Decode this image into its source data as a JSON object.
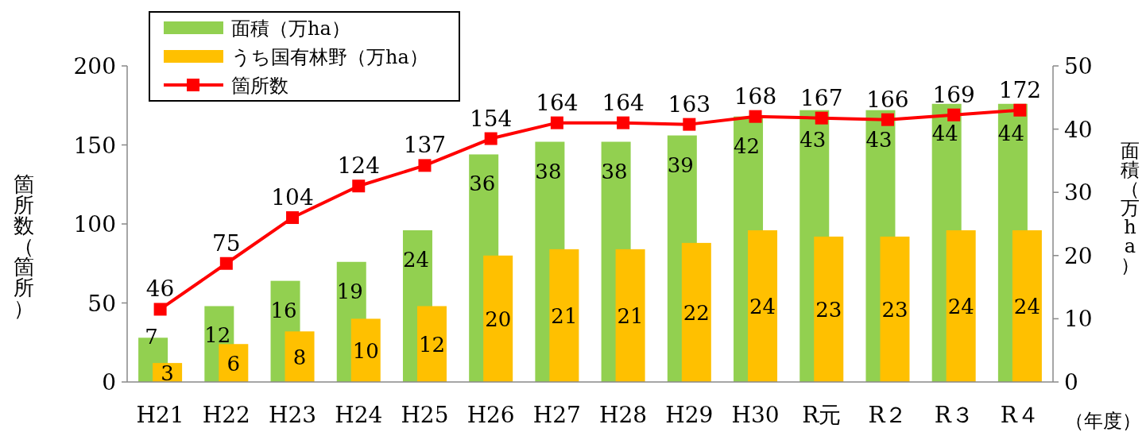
{
  "chart_data": {
    "type": "bar",
    "categories": [
      "H21",
      "H22",
      "H23",
      "H24",
      "H25",
      "H26",
      "H27",
      "H28",
      "H29",
      "H30",
      "R元",
      "R２",
      "R３",
      "R４"
    ],
    "series": [
      {
        "name": "面積（万ha）",
        "axis": "y2",
        "color": "#92d050",
        "values": [
          7,
          12,
          16,
          19,
          24,
          36,
          38,
          38,
          39,
          42,
          43,
          43,
          44,
          44
        ]
      },
      {
        "name": "うち国有林野（万ha）",
        "axis": "y2",
        "color": "#ffc000",
        "values": [
          3,
          6,
          8,
          10,
          12,
          20,
          21,
          21,
          22,
          24,
          23,
          23,
          24,
          24
        ]
      },
      {
        "name": "箇所数",
        "type": "line",
        "color": "#ff0000",
        "values": [
          46,
          75,
          104,
          124,
          137,
          154,
          164,
          164,
          163,
          168,
          167,
          166,
          169,
          172
        ]
      }
    ],
    "ylabel": "箇所数（箇所）",
    "y2label": "面積（万ha）",
    "annotations": [
      "（年度）"
    ],
    "ylim": [
      0,
      200
    ],
    "yticks": [
      0,
      50,
      100,
      150,
      200
    ],
    "y2lim": [
      0,
      50
    ],
    "y2ticks": [
      0,
      10,
      20,
      30,
      40,
      50
    ],
    "data_labels": true,
    "legend": "top left",
    "marker": "square",
    "grid": false
  }
}
